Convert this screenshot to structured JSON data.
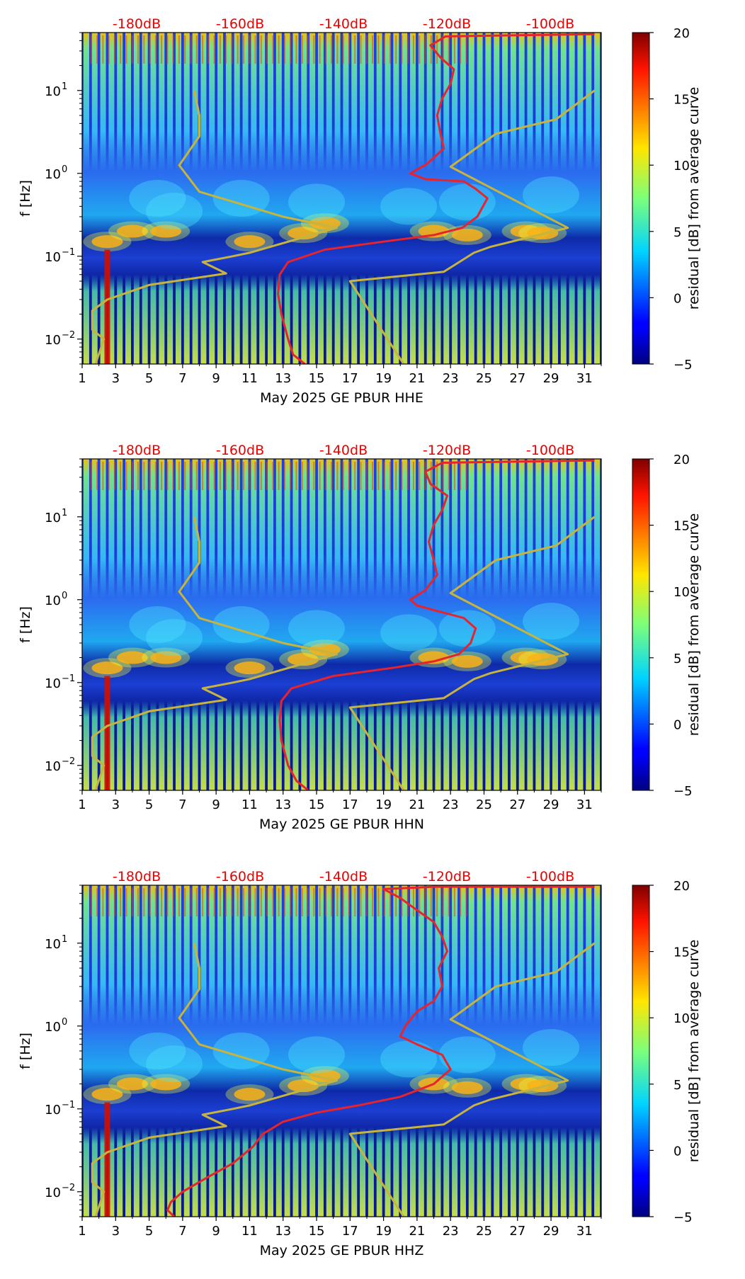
{
  "chart_data": [
    {
      "type": "heatmap",
      "xlabel": "May 2025 GE PBUR  HHE",
      "ylabel": "f [Hz]",
      "x_ticks": [
        "1",
        "3",
        "5",
        "7",
        "9",
        "11",
        "13",
        "15",
        "17",
        "19",
        "21",
        "23",
        "25",
        "27",
        "29",
        "31"
      ],
      "xlim": [
        1,
        32
      ],
      "ylim_hz": [
        0.005,
        50
      ],
      "y_scale": "log",
      "y_ticks": [
        {
          "base": "10",
          "exp": "1"
        },
        {
          "base": "10",
          "exp": "0"
        },
        {
          "base": "10",
          "exp": "−1"
        },
        {
          "base": "10",
          "exp": "−2"
        }
      ],
      "top_db_labels": [
        "-180dB",
        "-160dB",
        "-140dB",
        "-120dB",
        "-100dB"
      ],
      "colorbar": {
        "label": "residual [dB] from average curve",
        "range": [
          -5,
          20
        ],
        "ticks": [
          "20",
          "15",
          "10",
          "5",
          "0",
          "−5"
        ]
      },
      "noise_model_curve": {
        "color": "#c8b43c",
        "points": [
          [
            1.8,
            0.005
          ],
          [
            2.3,
            0.01
          ],
          [
            1.6,
            0.013
          ],
          [
            1.6,
            0.022
          ],
          [
            2.5,
            0.03
          ],
          [
            5,
            0.045
          ],
          [
            9.6,
            0.062
          ],
          [
            8.2,
            0.085
          ],
          [
            10,
            0.1
          ],
          [
            11,
            0.11
          ],
          [
            16.2,
            0.22
          ],
          [
            13,
            0.3
          ],
          [
            8,
            0.6
          ],
          [
            6.8,
            1.25
          ],
          [
            8,
            2.8
          ],
          [
            8,
            5
          ],
          [
            7.7,
            10
          ]
        ]
      },
      "noise_model_curve_high": {
        "color": "#c8b43c",
        "points": [
          [
            20.2,
            0.005
          ],
          [
            17,
            0.05
          ],
          [
            22.6,
            0.065
          ],
          [
            24.4,
            0.11
          ],
          [
            25.4,
            0.13
          ],
          [
            30,
            0.22
          ],
          [
            23,
            1.2
          ],
          [
            25.7,
            3
          ],
          [
            29.3,
            4.5
          ],
          [
            31.6,
            10
          ]
        ]
      },
      "median_psd_curve": {
        "color": "#e8232b",
        "points": [
          [
            14.3,
            0.005
          ],
          [
            13.6,
            0.0065
          ],
          [
            13.3,
            0.01
          ],
          [
            12.9,
            0.02
          ],
          [
            12.7,
            0.035
          ],
          [
            12.8,
            0.06
          ],
          [
            13.3,
            0.085
          ],
          [
            15.5,
            0.12
          ],
          [
            19,
            0.15
          ],
          [
            22,
            0.18
          ],
          [
            23.7,
            0.22
          ],
          [
            24.6,
            0.3
          ],
          [
            25.2,
            0.5
          ],
          [
            24.5,
            0.65
          ],
          [
            23.8,
            0.8
          ],
          [
            21.5,
            0.85
          ],
          [
            20.6,
            1
          ],
          [
            21.6,
            1.3
          ],
          [
            22.6,
            2
          ],
          [
            22.4,
            3
          ],
          [
            22.2,
            5
          ],
          [
            22.5,
            8
          ],
          [
            23,
            12
          ],
          [
            23.2,
            18
          ],
          [
            22.4,
            25
          ],
          [
            21.8,
            35
          ],
          [
            22.7,
            45
          ],
          [
            31.6,
            48
          ]
        ]
      }
    },
    {
      "type": "heatmap",
      "xlabel": "May 2025 GE PBUR  HHN",
      "ylabel": "f [Hz]",
      "x_ticks": [
        "1",
        "3",
        "5",
        "7",
        "9",
        "11",
        "13",
        "15",
        "17",
        "19",
        "21",
        "23",
        "25",
        "27",
        "29",
        "31"
      ],
      "xlim": [
        1,
        32
      ],
      "ylim_hz": [
        0.005,
        50
      ],
      "y_scale": "log",
      "y_ticks": [
        {
          "base": "10",
          "exp": "1"
        },
        {
          "base": "10",
          "exp": "0"
        },
        {
          "base": "10",
          "exp": "−1"
        },
        {
          "base": "10",
          "exp": "−2"
        }
      ],
      "top_db_labels": [
        "-180dB",
        "-160dB",
        "-140dB",
        "-120dB",
        "-100dB"
      ],
      "colorbar": {
        "label": "residual [dB] from average curve",
        "range": [
          -5,
          20
        ],
        "ticks": [
          "20",
          "15",
          "10",
          "5",
          "0",
          "−5"
        ]
      },
      "noise_model_curve": {
        "color": "#c8b43c",
        "points": [
          [
            1.8,
            0.005
          ],
          [
            2.3,
            0.01
          ],
          [
            1.6,
            0.013
          ],
          [
            1.6,
            0.022
          ],
          [
            2.5,
            0.03
          ],
          [
            5,
            0.045
          ],
          [
            9.6,
            0.062
          ],
          [
            8.2,
            0.085
          ],
          [
            10,
            0.1
          ],
          [
            11,
            0.11
          ],
          [
            16.2,
            0.22
          ],
          [
            13,
            0.3
          ],
          [
            8,
            0.6
          ],
          [
            6.8,
            1.25
          ],
          [
            8,
            2.8
          ],
          [
            8,
            5
          ],
          [
            7.7,
            10
          ]
        ]
      },
      "noise_model_curve_high": {
        "color": "#c8b43c",
        "points": [
          [
            20.2,
            0.005
          ],
          [
            17,
            0.05
          ],
          [
            22.6,
            0.065
          ],
          [
            24.4,
            0.11
          ],
          [
            25.4,
            0.13
          ],
          [
            30,
            0.22
          ],
          [
            23,
            1.2
          ],
          [
            25.7,
            3
          ],
          [
            29.3,
            4.5
          ],
          [
            31.6,
            10
          ]
        ]
      },
      "median_psd_curve": {
        "color": "#e8232b",
        "points": [
          [
            14.5,
            0.005
          ],
          [
            13.8,
            0.0065
          ],
          [
            13.3,
            0.01
          ],
          [
            12.9,
            0.02
          ],
          [
            12.8,
            0.035
          ],
          [
            12.9,
            0.06
          ],
          [
            13.5,
            0.085
          ],
          [
            16,
            0.12
          ],
          [
            19.5,
            0.15
          ],
          [
            22,
            0.18
          ],
          [
            23.5,
            0.22
          ],
          [
            24.2,
            0.3
          ],
          [
            24.5,
            0.45
          ],
          [
            23.8,
            0.6
          ],
          [
            22,
            0.75
          ],
          [
            21,
            0.85
          ],
          [
            20.6,
            1
          ],
          [
            21.5,
            1.3
          ],
          [
            22.2,
            2
          ],
          [
            22,
            3
          ],
          [
            21.7,
            5
          ],
          [
            22,
            8
          ],
          [
            22.5,
            12
          ],
          [
            22.8,
            18
          ],
          [
            21.8,
            25
          ],
          [
            21.5,
            35
          ],
          [
            22.5,
            45
          ],
          [
            31.6,
            48
          ]
        ]
      }
    },
    {
      "type": "heatmap",
      "xlabel": "May 2025 GE PBUR  HHZ",
      "ylabel": "f [Hz]",
      "x_ticks": [
        "1",
        "3",
        "5",
        "7",
        "9",
        "11",
        "13",
        "15",
        "17",
        "19",
        "21",
        "23",
        "25",
        "27",
        "29",
        "31"
      ],
      "xlim": [
        1,
        32
      ],
      "ylim_hz": [
        0.005,
        50
      ],
      "y_scale": "log",
      "y_ticks": [
        {
          "base": "10",
          "exp": "1"
        },
        {
          "base": "10",
          "exp": "0"
        },
        {
          "base": "10",
          "exp": "−1"
        },
        {
          "base": "10",
          "exp": "−2"
        }
      ],
      "top_db_labels": [
        "-180dB",
        "-160dB",
        "-140dB",
        "-120dB",
        "-100dB"
      ],
      "colorbar": {
        "label": "residual [dB] from average curve",
        "range": [
          -5,
          20
        ],
        "ticks": [
          "20",
          "15",
          "10",
          "5",
          "0",
          "−5"
        ]
      },
      "noise_model_curve": {
        "color": "#c8b43c",
        "points": [
          [
            1.8,
            0.005
          ],
          [
            2.3,
            0.01
          ],
          [
            1.6,
            0.013
          ],
          [
            1.6,
            0.022
          ],
          [
            2.5,
            0.03
          ],
          [
            5,
            0.045
          ],
          [
            9.6,
            0.062
          ],
          [
            8.2,
            0.085
          ],
          [
            10,
            0.1
          ],
          [
            11,
            0.11
          ],
          [
            16.2,
            0.22
          ],
          [
            13,
            0.3
          ],
          [
            8,
            0.6
          ],
          [
            6.8,
            1.25
          ],
          [
            8,
            2.8
          ],
          [
            8,
            5
          ],
          [
            7.7,
            10
          ]
        ]
      },
      "noise_model_curve_high": {
        "color": "#c8b43c",
        "points": [
          [
            20.2,
            0.005
          ],
          [
            17,
            0.05
          ],
          [
            22.6,
            0.065
          ],
          [
            24.4,
            0.11
          ],
          [
            25.4,
            0.13
          ],
          [
            30,
            0.22
          ],
          [
            23,
            1.2
          ],
          [
            25.7,
            3
          ],
          [
            29.3,
            4.5
          ],
          [
            31.6,
            10
          ]
        ]
      },
      "median_psd_curve": {
        "color": "#e8232b",
        "points": [
          [
            6.5,
            0.005
          ],
          [
            6.1,
            0.006
          ],
          [
            6.3,
            0.0075
          ],
          [
            7,
            0.01
          ],
          [
            8.5,
            0.015
          ],
          [
            10,
            0.022
          ],
          [
            11.2,
            0.035
          ],
          [
            11.8,
            0.05
          ],
          [
            13,
            0.07
          ],
          [
            15,
            0.09
          ],
          [
            17.5,
            0.11
          ],
          [
            20,
            0.14
          ],
          [
            22,
            0.2
          ],
          [
            23,
            0.3
          ],
          [
            22.5,
            0.45
          ],
          [
            21,
            0.6
          ],
          [
            20,
            0.75
          ],
          [
            20.3,
            1
          ],
          [
            21,
            1.5
          ],
          [
            22,
            2
          ],
          [
            22.5,
            3
          ],
          [
            22.3,
            5
          ],
          [
            22.8,
            8
          ],
          [
            22.5,
            12
          ],
          [
            22,
            18
          ],
          [
            21,
            25
          ],
          [
            20,
            35
          ],
          [
            19,
            45
          ],
          [
            22,
            48
          ],
          [
            31.6,
            48
          ]
        ]
      }
    }
  ]
}
